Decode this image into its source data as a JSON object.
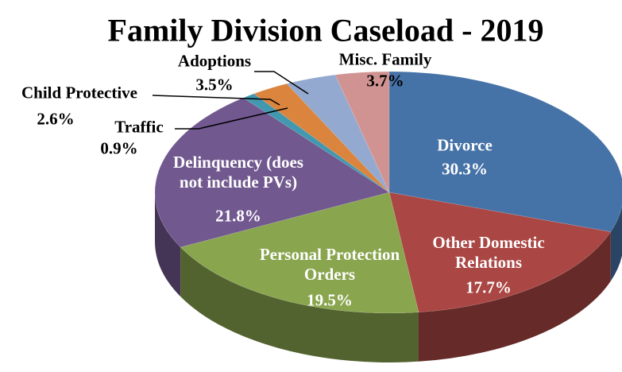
{
  "chart_data": {
    "type": "pie3d",
    "title": "Family Division Caseload - 2019",
    "categories": [
      "Divorce",
      "Other Domestic Relations",
      "Personal Protection Orders",
      "Delinquency (does not include PVs)",
      "Traffic",
      "Child Protective",
      "Adoptions",
      "Misc. Family"
    ],
    "values": [
      30.3,
      17.7,
      19.5,
      21.8,
      0.9,
      2.6,
      3.5,
      3.7
    ],
    "value_labels": [
      "30.3%",
      "17.7%",
      "19.5%",
      "21.8%",
      "0.9%",
      "2.6%",
      "3.5%",
      "3.7%"
    ],
    "colors": [
      "#4572a7",
      "#aa4643",
      "#89a54e",
      "#71588f",
      "#4198af",
      "#db843d",
      "#93a9cf",
      "#d19392"
    ]
  }
}
